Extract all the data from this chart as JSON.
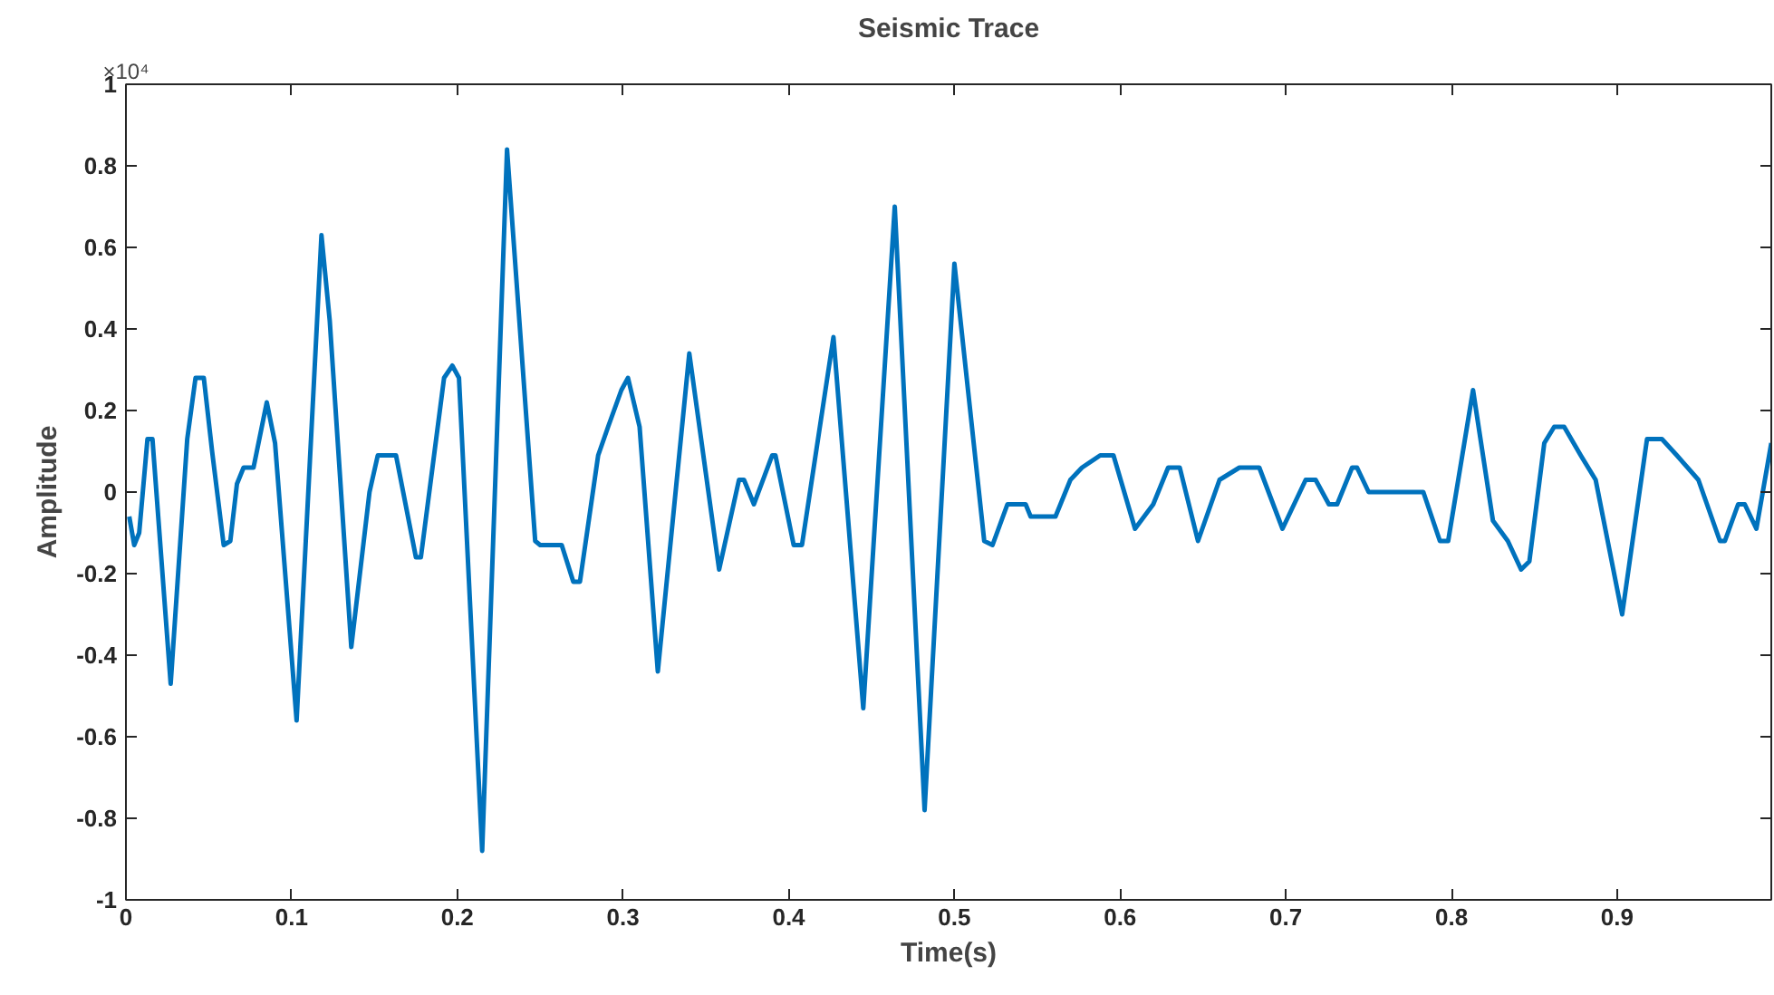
{
  "chart_data": {
    "type": "line",
    "title": "Seismic Trace",
    "xlabel": "Time(s)",
    "ylabel": "Amplitude",
    "annotations": [
      "×10⁴"
    ],
    "xlim": [
      0,
      0.993
    ],
    "xticks": [
      0,
      0.1,
      0.2,
      0.3,
      0.4,
      0.5,
      0.6,
      0.7,
      0.8,
      0.9
    ],
    "ylim": [
      -1,
      1
    ],
    "yticks": [
      -1,
      -0.8,
      -0.6,
      -0.4,
      -0.2,
      0,
      0.2,
      0.4,
      0.6,
      0.8,
      1
    ],
    "grid": false,
    "marker": "none",
    "line_style": "solid",
    "series": [
      {
        "color": "#0072bd",
        "x": [
          0.002,
          0.005,
          0.008,
          0.013,
          0.016,
          0.027,
          0.037,
          0.042,
          0.047,
          0.052,
          0.059,
          0.063,
          0.067,
          0.071,
          0.077,
          0.085,
          0.09,
          0.103,
          0.118,
          0.123,
          0.136,
          0.147,
          0.152,
          0.163,
          0.175,
          0.178,
          0.192,
          0.197,
          0.201,
          0.215,
          0.23,
          0.247,
          0.25,
          0.263,
          0.27,
          0.274,
          0.285,
          0.291,
          0.299,
          0.303,
          0.31,
          0.321,
          0.34,
          0.358,
          0.37,
          0.373,
          0.379,
          0.39,
          0.392,
          0.403,
          0.408,
          0.427,
          0.445,
          0.464,
          0.482,
          0.5,
          0.518,
          0.523,
          0.532,
          0.543,
          0.546,
          0.561,
          0.57,
          0.577,
          0.588,
          0.596,
          0.609,
          0.62,
          0.629,
          0.636,
          0.647,
          0.66,
          0.672,
          0.684,
          0.698,
          0.712,
          0.718,
          0.726,
          0.731,
          0.74,
          0.743,
          0.75,
          0.783,
          0.793,
          0.798,
          0.813,
          0.825,
          0.834,
          0.842,
          0.847,
          0.856,
          0.862,
          0.868,
          0.878,
          0.887,
          0.903,
          0.918,
          0.927,
          0.936,
          0.949,
          0.962,
          0.965,
          0.973,
          0.977,
          0.984,
          0.993
        ],
        "values": [
          -0.06,
          -0.13,
          -0.1,
          0.13,
          0.13,
          -0.47,
          0.13,
          0.28,
          0.28,
          0.1,
          -0.13,
          -0.12,
          0.02,
          0.06,
          0.06,
          0.22,
          0.12,
          -0.56,
          0.63,
          0.42,
          -0.38,
          0.0,
          0.09,
          0.09,
          -0.16,
          -0.16,
          0.28,
          0.31,
          0.28,
          -0.88,
          0.84,
          -0.12,
          -0.13,
          -0.13,
          -0.22,
          -0.22,
          0.09,
          0.16,
          0.25,
          0.28,
          0.16,
          -0.44,
          0.34,
          -0.19,
          0.03,
          0.03,
          -0.03,
          0.09,
          0.09,
          -0.13,
          -0.13,
          0.38,
          -0.53,
          0.7,
          -0.78,
          0.56,
          -0.12,
          -0.13,
          -0.03,
          -0.03,
          -0.06,
          -0.06,
          0.03,
          0.06,
          0.09,
          0.09,
          -0.09,
          -0.03,
          0.06,
          0.06,
          -0.12,
          0.03,
          0.06,
          0.06,
          -0.09,
          0.03,
          0.03,
          -0.03,
          -0.03,
          0.06,
          0.06,
          0.0,
          0.0,
          -0.12,
          -0.12,
          0.25,
          -0.07,
          -0.12,
          -0.19,
          -0.17,
          0.12,
          0.16,
          0.16,
          0.09,
          0.03,
          -0.3,
          0.13,
          0.13,
          0.09,
          0.03,
          -0.12,
          -0.12,
          -0.03,
          -0.03,
          -0.09,
          0.12
        ]
      }
    ]
  }
}
